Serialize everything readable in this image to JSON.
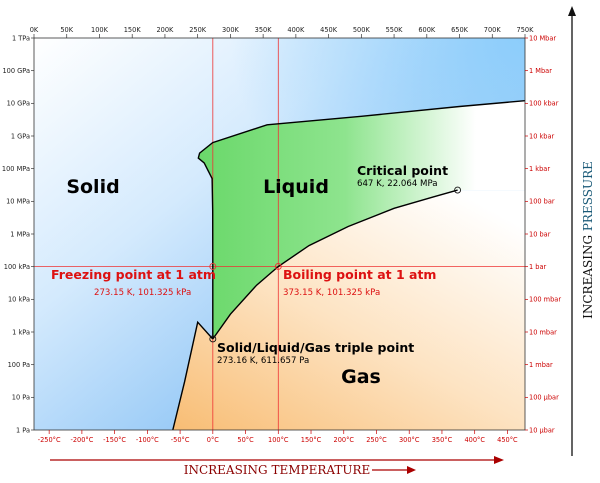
{
  "chart_data": {
    "type": "line",
    "title": "",
    "x_axis": {
      "top_unit": "K",
      "top_range": [
        0,
        750
      ],
      "top_ticks": [
        "0K",
        "50K",
        "100K",
        "150K",
        "200K",
        "250K",
        "300K",
        "350K",
        "400K",
        "450K",
        "500K",
        "550K",
        "600K",
        "650K",
        "700K",
        "750K"
      ],
      "bottom_ticks": [
        "-250°C",
        "-200°C",
        "-150°C",
        "-100°C",
        "-50°C",
        "0°C",
        "50°C",
        "100°C",
        "150°C",
        "200°C",
        "250°C",
        "300°C",
        "350°C",
        "400°C",
        "450°C"
      ],
      "title": "INCREASING TEMPERATURE"
    },
    "y_axis": {
      "scale": "log",
      "range_pa": [
        1,
        1000000000000.0
      ],
      "left_ticks": [
        "1 TPa",
        "100 GPa",
        "10 GPa",
        "1 GPa",
        "100 MPa",
        "10 MPa",
        "1 MPa",
        "100 kPa",
        "10 kPa",
        "1 kPa",
        "100 Pa",
        "10 Pa",
        "1 Pa"
      ],
      "right_ticks": [
        "10 Mbar",
        "1 Mbar",
        "100 kbar",
        "10 kbar",
        "1 kbar",
        "100 bar",
        "10 bar",
        "1 bar",
        "100 mbar",
        "10 mbar",
        "1 mbar",
        "100 μbar",
        "10 μbar"
      ],
      "title_prefix": "INCREASING ",
      "title_emphasis": "PRESSURE"
    },
    "regions": [
      {
        "name": "Solid",
        "color": "#1f1fe0"
      },
      {
        "name": "Liquid",
        "color": "#22aa22"
      },
      {
        "name": "Gas",
        "color": "#b8860b"
      }
    ],
    "series": [
      {
        "name": "sublimation curve",
        "x": [
          212,
          230,
          250,
          273.16
        ],
        "y": [
          1,
          30,
          2000,
          611.657
        ]
      },
      {
        "name": "melting curve",
        "x": [
          273.16,
          273.15,
          273,
          272,
          260,
          251,
          253,
          273,
          356,
          500,
          650,
          750
        ],
        "y": [
          611.657,
          101325,
          5000000.0,
          50000000.0,
          150000000.0,
          210000000.0,
          300000000.0,
          630000000.0,
          2200000000.0,
          4000000000.0,
          8000000000.0,
          12000000000.0
        ]
      },
      {
        "name": "vaporization curve",
        "x": [
          273.16,
          300,
          340,
          373.15,
          420,
          480,
          550,
          610,
          647
        ],
        "y": [
          611.657,
          3500,
          27000,
          101325,
          440000,
          1700000,
          6100000,
          13700000,
          22064000
        ]
      }
    ],
    "reference_lines": {
      "pressure_1atm_pa": 101325,
      "freezing_k": 273.15,
      "boiling_k": 373.15
    },
    "points": [
      {
        "label": "Critical point",
        "sub": "647 K, 22.064 MPa",
        "x": 647,
        "y": 22064000
      },
      {
        "label": "Freezing point at 1 atm",
        "sub": "273.15 K, 101.325 kPa",
        "x": 273.15,
        "y": 101325
      },
      {
        "label": "Boiling point at 1 atm",
        "sub": "373.15 K, 101.325 kPa",
        "x": 373.15,
        "y": 101325
      },
      {
        "label": "Solid/Liquid/Gas triple point",
        "sub": "273.16 K, 611.657 Pa",
        "x": 273.16,
        "y": 611.657
      }
    ],
    "colors": {
      "solid": "#5aaaf0",
      "liquid": "#6cd86c",
      "gas": "#f8c07a",
      "reference": "#ee3333",
      "curve": "#000000",
      "red_text": "#dd1111"
    }
  }
}
